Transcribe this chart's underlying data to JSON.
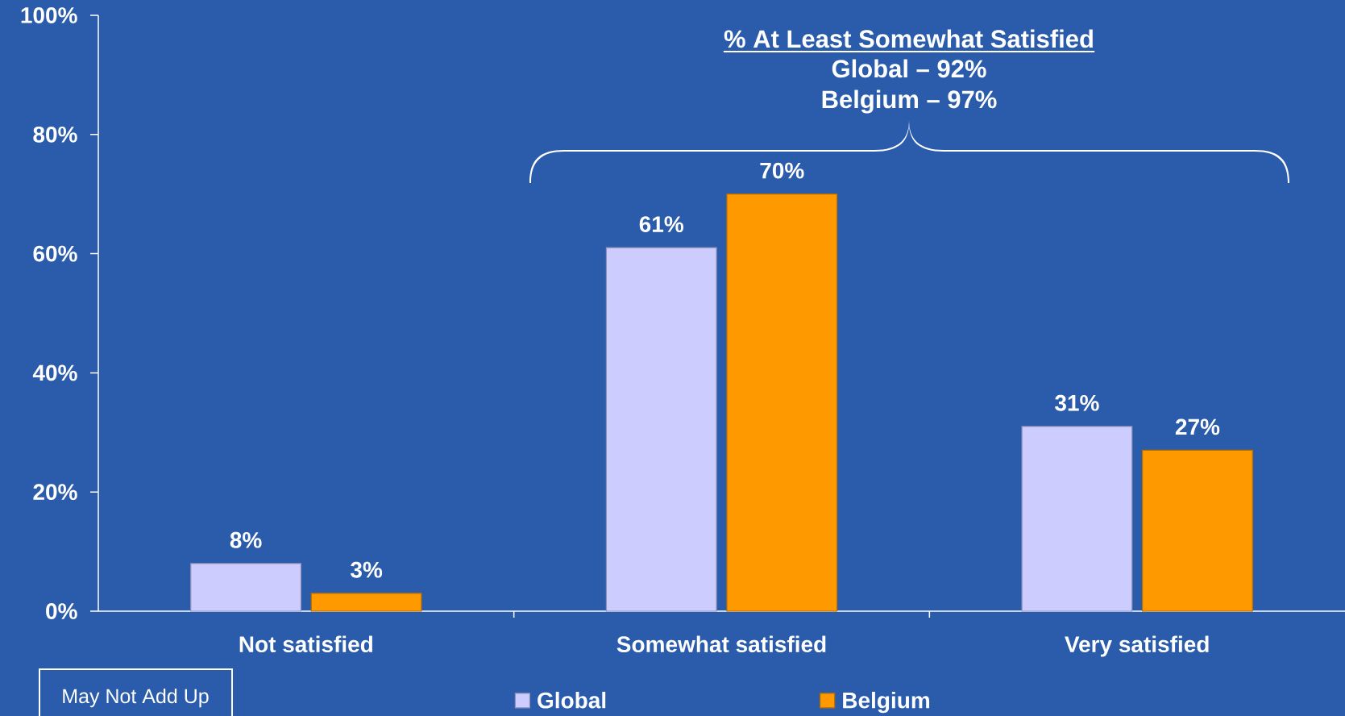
{
  "chart_data": {
    "type": "bar",
    "categories": [
      "Not satisfied",
      "Somewhat satisfied",
      "Very satisfied"
    ],
    "series": [
      {
        "name": "Global",
        "color": "#ccccff",
        "values": [
          8,
          61,
          31
        ],
        "value_labels": [
          "8%",
          "61%",
          "31%"
        ]
      },
      {
        "name": "Belgium",
        "color": "#ff9900",
        "values": [
          3,
          70,
          27
        ],
        "value_labels": [
          "3%",
          "70%",
          "27%"
        ]
      }
    ],
    "ylim": [
      0,
      100
    ],
    "yticks": [
      {
        "value": 0,
        "label": "0%"
      },
      {
        "value": 20,
        "label": "20%"
      },
      {
        "value": 40,
        "label": "40%"
      },
      {
        "value": 60,
        "label": "60%"
      },
      {
        "value": 80,
        "label": "80%"
      },
      {
        "value": 100,
        "label": "100%"
      }
    ],
    "legend": "bottom",
    "annotations": [
      "% At Least Somewhat Satisfied",
      "Global – 92%",
      "Belgium – 97%",
      "May Not Add Up"
    ]
  }
}
